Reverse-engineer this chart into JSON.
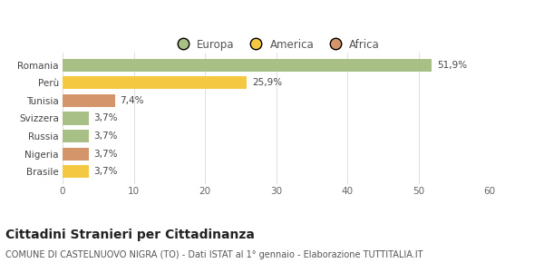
{
  "categories": [
    "Brasile",
    "Nigeria",
    "Russia",
    "Svizzera",
    "Tunisia",
    "Perù",
    "Romania"
  ],
  "values": [
    3.7,
    3.7,
    3.7,
    3.7,
    7.4,
    25.9,
    51.9
  ],
  "colors": [
    "#f5c842",
    "#d4956a",
    "#a8bf85",
    "#a8bf85",
    "#d4956a",
    "#f5c842",
    "#a8bf85"
  ],
  "labels": [
    "3,7%",
    "3,7%",
    "3,7%",
    "3,7%",
    "7,4%",
    "25,9%",
    "51,9%"
  ],
  "legend": [
    {
      "label": "Europa",
      "color": "#a8bf85"
    },
    {
      "label": "America",
      "color": "#f5c842"
    },
    {
      "label": "Africa",
      "color": "#d4956a"
    }
  ],
  "xlim": [
    0,
    60
  ],
  "xticks": [
    0,
    10,
    20,
    30,
    40,
    50,
    60
  ],
  "title": "Cittadini Stranieri per Cittadinanza",
  "subtitle": "COMUNE DI CASTELNUOVO NIGRA (TO) - Dati ISTAT al 1° gennaio - Elaborazione TUTTITALIA.IT",
  "background_color": "#ffffff",
  "bar_height": 0.72,
  "grid_color": "#e0e0e0",
  "label_fontsize": 7.5,
  "ytick_fontsize": 7.5,
  "xtick_fontsize": 7.5,
  "title_fontsize": 10,
  "subtitle_fontsize": 7,
  "legend_fontsize": 8.5
}
